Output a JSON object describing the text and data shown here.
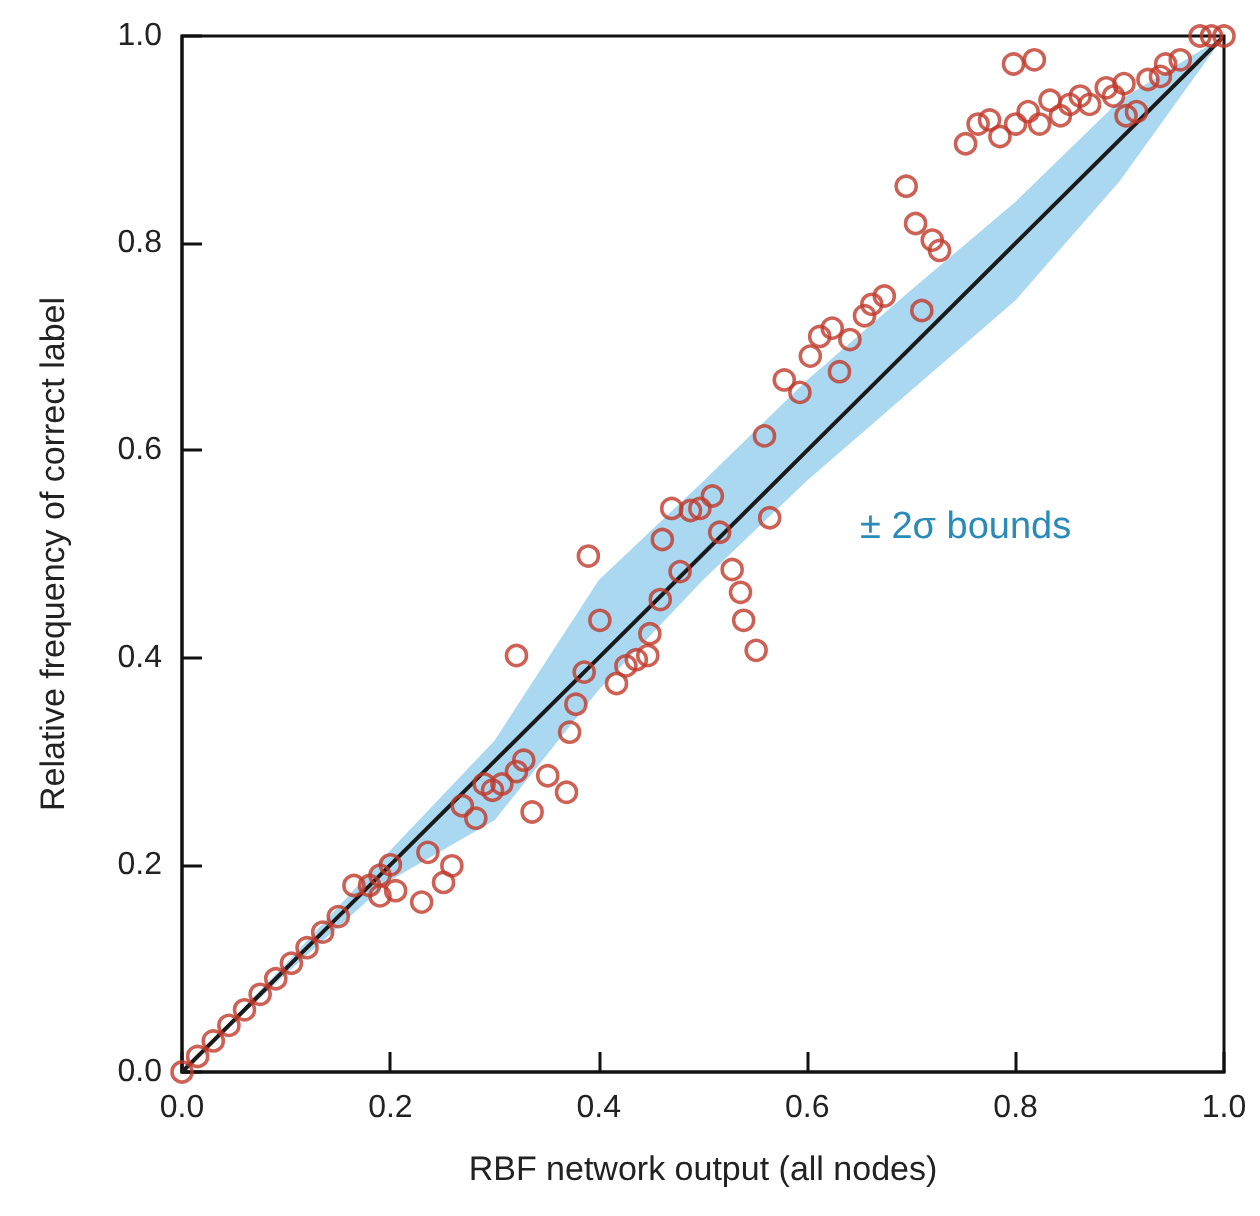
{
  "chart_data": {
    "type": "scatter",
    "xlabel": "RBF network output (all nodes)",
    "ylabel": "Relative frequency of correct label",
    "xlim": [
      0,
      1
    ],
    "ylim": [
      0,
      1
    ],
    "xticks": [
      {
        "value": 0,
        "label": "0.0"
      },
      {
        "value": 0.2,
        "label": "0.2"
      },
      {
        "value": 0.4,
        "label": "0.4"
      },
      {
        "value": 0.6,
        "label": "0.6"
      },
      {
        "value": 0.8,
        "label": "0.8"
      },
      {
        "value": 1,
        "label": "1.0"
      }
    ],
    "yticks": [
      {
        "value": 0,
        "label": "0.0"
      },
      {
        "value": 0.2,
        "label": "0.2"
      },
      {
        "value": 0.4,
        "label": "0.4"
      },
      {
        "value": 0.6,
        "label": "0.6"
      },
      {
        "value": 0.8,
        "label": "0.8"
      },
      {
        "value": 1,
        "label": "1.0"
      }
    ],
    "grid": false,
    "marker": "circle",
    "annotations": [
      "± 2σ bounds"
    ],
    "series": [
      {
        "type": "line",
        "color": "#1a1a1a",
        "marker": "none",
        "x": [
          0,
          0.1,
          0.2,
          0.3,
          0.4,
          0.5,
          0.6,
          0.7,
          0.8,
          0.9,
          1
        ],
        "values": [
          0,
          0.1,
          0.2,
          0.3,
          0.4,
          0.5,
          0.6,
          0.7,
          0.8,
          0.9,
          1
        ],
        "lower": [
          0,
          0.095,
          0.185,
          0.243,
          0.369,
          0.475,
          0.571,
          0.658,
          0.745,
          0.86,
          1
        ],
        "upper": [
          0,
          0.105,
          0.214,
          0.32,
          0.475,
          0.57,
          0.668,
          0.755,
          0.84,
          0.938,
          1
        ]
      },
      {
        "color": "#c0392b",
        "x": [
          0,
          0.015,
          0.03,
          0.045,
          0.06,
          0.075,
          0.09,
          0.105,
          0.12,
          0.135,
          0.15,
          0.165,
          0.18,
          0.19,
          0.2,
          0.19,
          0.205,
          0.236,
          0.23,
          0.251,
          0.259,
          0.269,
          0.282,
          0.29,
          0.298,
          0.307,
          0.321,
          0.328,
          0.321,
          0.336,
          0.351,
          0.369,
          0.372,
          0.378,
          0.386,
          0.39,
          0.401,
          0.417,
          0.426,
          0.436,
          0.449,
          0.447,
          0.459,
          0.461,
          0.47,
          0.478,
          0.488,
          0.497,
          0.509,
          0.516,
          0.528,
          0.536,
          0.539,
          0.551,
          0.564,
          0.559,
          0.578,
          0.593,
          0.603,
          0.612,
          0.624,
          0.631,
          0.641,
          0.655,
          0.662,
          0.674,
          0.71,
          0.695,
          0.72,
          0.704,
          0.727,
          0.752,
          0.764,
          0.775,
          0.785,
          0.798,
          0.8,
          0.812,
          0.818,
          0.823,
          0.833,
          0.843,
          0.852,
          0.862,
          0.871,
          0.887,
          0.894,
          0.904,
          0.906,
          0.916,
          0.927,
          0.939,
          0.944,
          0.958,
          0.977,
          0.988,
          1
        ],
        "values": [
          0,
          0.015,
          0.03,
          0.045,
          0.06,
          0.075,
          0.09,
          0.105,
          0.12,
          0.135,
          0.15,
          0.18,
          0.18,
          0.19,
          0.2,
          0.17,
          0.175,
          0.212,
          0.164,
          0.183,
          0.199,
          0.257,
          0.245,
          0.278,
          0.272,
          0.278,
          0.29,
          0.301,
          0.402,
          0.251,
          0.286,
          0.27,
          0.328,
          0.355,
          0.386,
          0.498,
          0.436,
          0.375,
          0.392,
          0.398,
          0.423,
          0.402,
          0.456,
          0.514,
          0.544,
          0.483,
          0.542,
          0.544,
          0.556,
          0.521,
          0.485,
          0.463,
          0.436,
          0.407,
          0.535,
          0.614,
          0.668,
          0.656,
          0.691,
          0.71,
          0.718,
          0.676,
          0.707,
          0.73,
          0.741,
          0.749,
          0.735,
          0.855,
          0.803,
          0.819,
          0.793,
          0.896,
          0.915,
          0.919,
          0.903,
          0.973,
          0.915,
          0.927,
          0.977,
          0.915,
          0.938,
          0.923,
          0.934,
          0.942,
          0.934,
          0.95,
          0.942,
          0.954,
          0.923,
          0.927,
          0.958,
          0.961,
          0.973,
          0.977,
          1,
          1,
          1
        ]
      }
    ]
  }
}
